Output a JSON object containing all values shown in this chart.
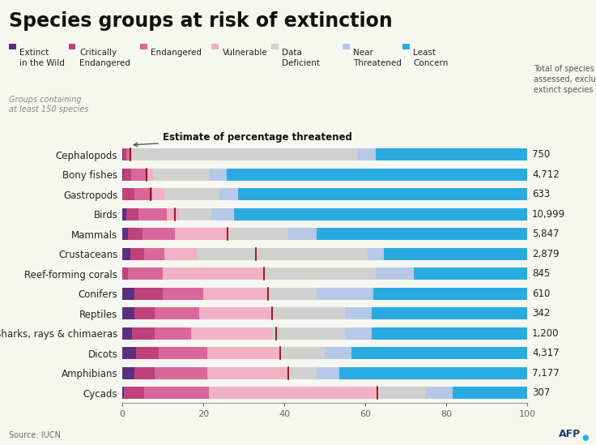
{
  "title": "Species groups at risk of extinction",
  "source": "Source: IUCN",
  "categories": [
    "Cephalopods",
    "Bony fishes",
    "Gastropods",
    "Birds",
    "Mammals",
    "Crustaceans",
    "Reef-forming corals",
    "Conifers",
    "Reptiles",
    "Sharks, rays & chimaeras",
    "Dicots",
    "Amphibians",
    "Cycads"
  ],
  "totals": [
    "750",
    "4,712",
    "633",
    "10,999",
    "5,847",
    "2,879",
    "845",
    "610",
    "342",
    "1,200",
    "4,317",
    "7,177",
    "307"
  ],
  "threatened_estimates": [
    2.0,
    6.0,
    7.0,
    13.0,
    26.0,
    33.0,
    35.0,
    36.0,
    37.0,
    38.0,
    39.0,
    41.0,
    63.0
  ],
  "segment_names": [
    "Extinct in Wild",
    "Critically Endangered",
    "Endangered",
    "Vulnerable",
    "Data Deficient",
    "Near Threatened",
    "Least Concern"
  ],
  "legend_labels": [
    "Extinct\nin the Wild",
    "Critically\nEndangered",
    "Endangered",
    "Vulnerable",
    "Data\nDeficient",
    "Near\nThreatened",
    "Least\nConcern"
  ],
  "segments": {
    "Extinct in Wild": [
      0.3,
      0.2,
      0.0,
      1.0,
      1.5,
      2.0,
      0.0,
      3.0,
      3.0,
      2.5,
      3.5,
      3.0,
      0.5
    ],
    "Critically Endangered": [
      0.7,
      2.0,
      3.0,
      3.0,
      3.5,
      3.5,
      1.5,
      7.0,
      5.0,
      5.5,
      5.5,
      5.0,
      5.0
    ],
    "Endangered": [
      1.0,
      4.0,
      4.5,
      7.0,
      8.0,
      5.0,
      8.5,
      10.0,
      11.0,
      9.0,
      12.0,
      13.0,
      16.0
    ],
    "Vulnerable": [
      0.5,
      1.5,
      3.0,
      3.0,
      13.0,
      8.0,
      25.0,
      16.0,
      18.0,
      20.0,
      18.0,
      20.0,
      41.5
    ],
    "Data Deficient": [
      55.5,
      14.0,
      13.5,
      8.0,
      15.0,
      42.0,
      27.5,
      12.0,
      18.0,
      18.0,
      11.0,
      7.0,
      12.0
    ],
    "Near Threatened": [
      4.5,
      4.0,
      4.5,
      5.5,
      7.0,
      4.0,
      9.5,
      14.0,
      6.5,
      6.5,
      6.5,
      5.5,
      6.5
    ],
    "Least Concern": [
      37.5,
      74.3,
      71.5,
      72.5,
      52.0,
      35.5,
      28.0,
      38.0,
      38.5,
      38.5,
      43.5,
      46.5,
      18.5
    ]
  },
  "colors": {
    "Extinct in Wild": "#5b3080",
    "Critically Endangered": "#c0427b",
    "Endangered": "#d9679a",
    "Vulnerable": "#f0b0c5",
    "Data Deficient": "#d0d0d0",
    "Near Threatened": "#b5c8e5",
    "Least Concern": "#29abe2"
  },
  "annotation_label": "Estimate of percentage threatened",
  "bg_color": "#f7f7f2",
  "title_fontsize": 17,
  "label_fontsize": 8.5,
  "tick_fontsize": 8,
  "legend_fontsize": 7.5
}
